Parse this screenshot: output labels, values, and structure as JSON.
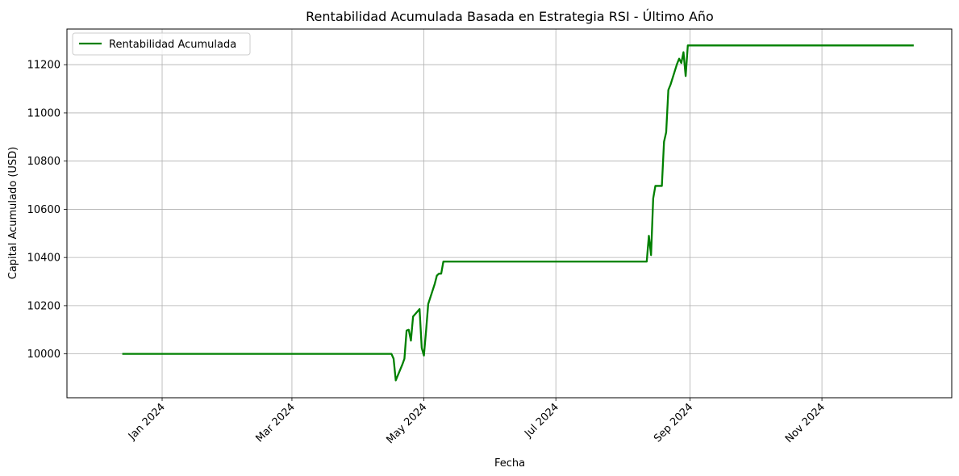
{
  "chart_data": {
    "type": "line",
    "title": "Rentabilidad Acumulada Basada en Estrategia RSI - Último Año",
    "xlabel": "Fecha",
    "ylabel": "Capital Acumulado (USD)",
    "x_tick_values": [
      "2024-01-01",
      "2024-03-01",
      "2024-05-01",
      "2024-07-01",
      "2024-09-01",
      "2024-11-01"
    ],
    "x_tick_labels": [
      "Jan 2024",
      "Mar 2024",
      "May 2024",
      "Jul 2024",
      "Sep 2024",
      "Nov 2024"
    ],
    "y_ticks": [
      10000,
      10200,
      10400,
      10600,
      10800,
      11000,
      11200
    ],
    "xlim": [
      "2023-11-18",
      "2024-12-31"
    ],
    "ylim": [
      9818,
      11348
    ],
    "grid": true,
    "legend_position": "top-left",
    "line_color": "#008000",
    "series": [
      {
        "name": "Rentabilidad Acumulada",
        "points": [
          [
            "2023-12-14",
            10000
          ],
          [
            "2024-04-16",
            10000
          ],
          [
            "2024-04-17",
            9980
          ],
          [
            "2024-04-18",
            9890
          ],
          [
            "2024-04-21",
            9955
          ],
          [
            "2024-04-22",
            9980
          ],
          [
            "2024-04-23",
            10097
          ],
          [
            "2024-04-24",
            10100
          ],
          [
            "2024-04-25",
            10055
          ],
          [
            "2024-04-26",
            10155
          ],
          [
            "2024-04-29",
            10186
          ],
          [
            "2024-04-30",
            10025
          ],
          [
            "2024-05-01",
            9993
          ],
          [
            "2024-05-02",
            10095
          ],
          [
            "2024-05-03",
            10207
          ],
          [
            "2024-05-06",
            10290
          ],
          [
            "2024-05-07",
            10325
          ],
          [
            "2024-05-08",
            10333
          ],
          [
            "2024-05-09",
            10333
          ],
          [
            "2024-05-10",
            10383
          ],
          [
            "2024-08-12",
            10383
          ],
          [
            "2024-08-13",
            10490
          ],
          [
            "2024-08-14",
            10410
          ],
          [
            "2024-08-15",
            10645
          ],
          [
            "2024-08-16",
            10697
          ],
          [
            "2024-08-19",
            10697
          ],
          [
            "2024-08-20",
            10880
          ],
          [
            "2024-08-21",
            10920
          ],
          [
            "2024-08-22",
            11095
          ],
          [
            "2024-08-23",
            11117
          ],
          [
            "2024-08-26",
            11203
          ],
          [
            "2024-08-27",
            11225
          ],
          [
            "2024-08-28",
            11207
          ],
          [
            "2024-08-29",
            11252
          ],
          [
            "2024-08-30",
            11153
          ],
          [
            "2024-08-31",
            11280
          ],
          [
            "2024-12-13",
            11280
          ]
        ]
      }
    ]
  }
}
